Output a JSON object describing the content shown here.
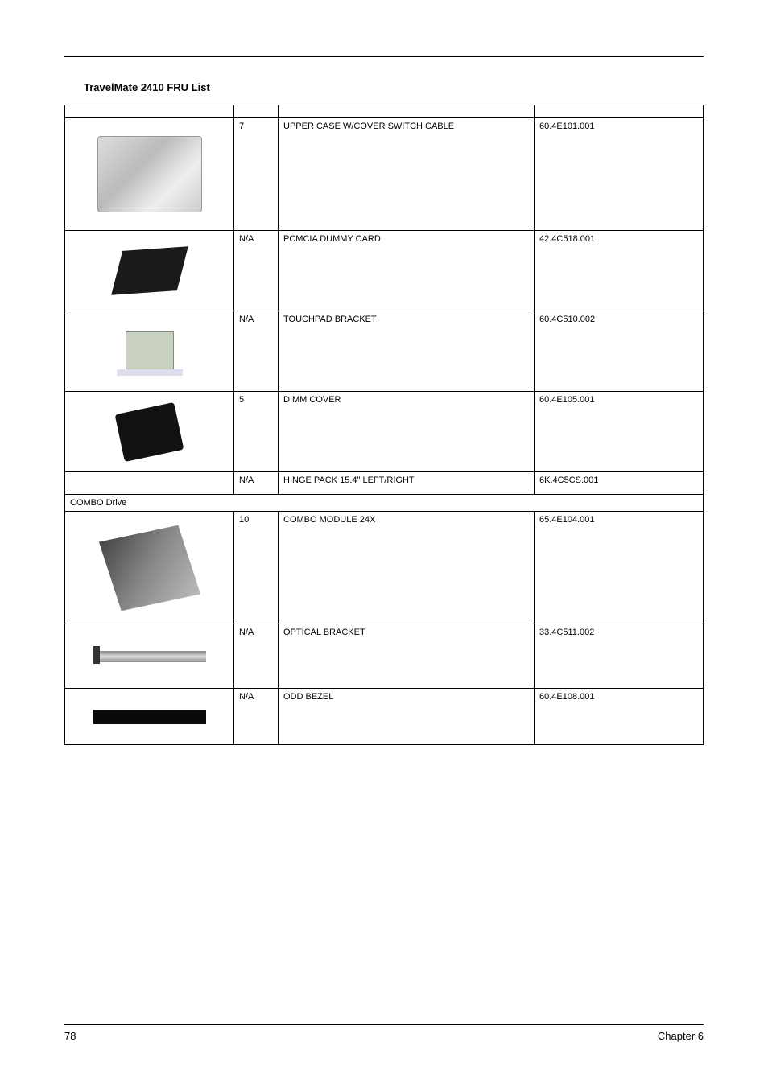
{
  "title": "TravelMate 2410 FRU List",
  "header": {
    "c1": "",
    "c2": "",
    "c3": "",
    "c4": ""
  },
  "rows": [
    {
      "img": "upper-case",
      "no": "7",
      "desc": "UPPER CASE W/COVER SWITCH CABLE",
      "part": "60.4E101.001",
      "rowClass": "row-tall"
    },
    {
      "img": "pcmcia",
      "no": "N/A",
      "desc": "PCMCIA DUMMY CARD",
      "part": "42.4C518.001",
      "rowClass": "row-med"
    },
    {
      "img": "touchpad",
      "no": "N/A",
      "desc": "TOUCHPAD BRACKET",
      "part": "60.4C510.002",
      "rowClass": "row-med"
    },
    {
      "img": "dimm",
      "no": "5",
      "desc": "DIMM COVER",
      "part": "60.4E105.001",
      "rowClass": "row-med"
    },
    {
      "img": "",
      "no": "N/A",
      "desc": "HINGE PACK 15.4\" LEFT/RIGHT",
      "part": "6K.4C5CS.001",
      "rowClass": "row-short"
    }
  ],
  "category": "COMBO Drive",
  "rows2": [
    {
      "img": "combo",
      "no": "10",
      "desc": "COMBO MODULE 24X",
      "part": "65.4E104.001",
      "rowClass": "row-tall"
    },
    {
      "img": "bracket",
      "no": "N/A",
      "desc": "OPTICAL BRACKET",
      "part": "33.4C511.002",
      "rowClass": "row-opt"
    },
    {
      "img": "bezel",
      "no": "N/A",
      "desc": "ODD BEZEL",
      "part": "60.4E108.001",
      "rowClass": "row-odd"
    }
  ],
  "footer": {
    "page": "78",
    "chapter": "Chapter 6"
  },
  "colors": {
    "text": "#000000",
    "border": "#000000",
    "bg": "#ffffff"
  }
}
